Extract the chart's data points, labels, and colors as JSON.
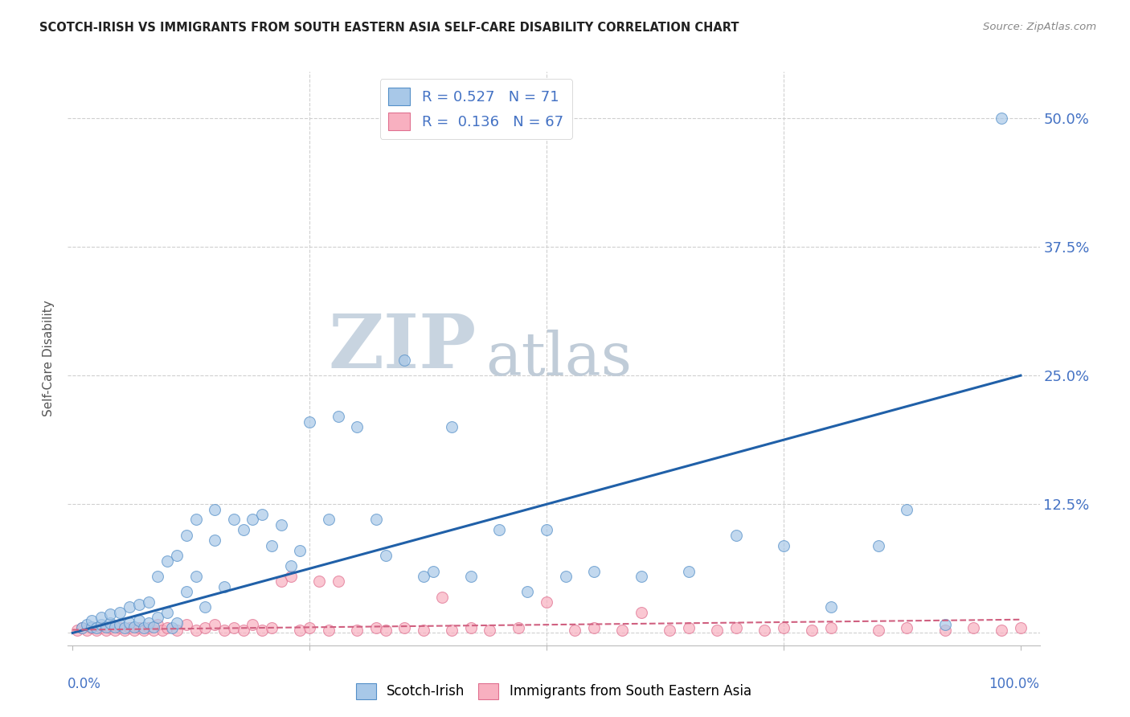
{
  "title": "SCOTCH-IRISH VS IMMIGRANTS FROM SOUTH EASTERN ASIA SELF-CARE DISABILITY CORRELATION CHART",
  "source": "Source: ZipAtlas.com",
  "ylabel": "Self-Care Disability",
  "y_ticks": [
    0.0,
    0.125,
    0.25,
    0.375,
    0.5
  ],
  "y_tick_labels": [
    "",
    "12.5%",
    "25.0%",
    "37.5%",
    "50.0%"
  ],
  "xlim": [
    -0.005,
    1.02
  ],
  "ylim": [
    -0.012,
    0.545
  ],
  "blue_R": 0.527,
  "blue_N": 71,
  "pink_R": 0.136,
  "pink_N": 67,
  "blue_color": "#a8c8e8",
  "blue_edge_color": "#5590c8",
  "blue_line_color": "#2060a8",
  "pink_color": "#f8b0c0",
  "pink_edge_color": "#e07090",
  "pink_line_color": "#d06080",
  "watermark_zip_color": "#c8d4e0",
  "watermark_atlas_color": "#c0ccd8",
  "title_color": "#222222",
  "axis_label_color": "#4472c4",
  "legend_R_color": "#4472c4",
  "background_color": "#ffffff",
  "grid_color": "#d0d0d0",
  "blue_trend_x": [
    0.0,
    1.0
  ],
  "blue_trend_y": [
    0.0,
    0.25
  ],
  "pink_trend_x": [
    0.0,
    1.0
  ],
  "pink_trend_y": [
    0.003,
    0.013
  ],
  "blue_scatter_x": [
    0.01,
    0.015,
    0.02,
    0.02,
    0.025,
    0.03,
    0.03,
    0.035,
    0.04,
    0.04,
    0.045,
    0.05,
    0.05,
    0.055,
    0.06,
    0.06,
    0.065,
    0.07,
    0.07,
    0.075,
    0.08,
    0.08,
    0.085,
    0.09,
    0.09,
    0.1,
    0.1,
    0.105,
    0.11,
    0.11,
    0.12,
    0.12,
    0.13,
    0.13,
    0.14,
    0.15,
    0.15,
    0.16,
    0.17,
    0.18,
    0.19,
    0.2,
    0.21,
    0.22,
    0.23,
    0.24,
    0.25,
    0.27,
    0.28,
    0.3,
    0.32,
    0.33,
    0.35,
    0.37,
    0.38,
    0.4,
    0.42,
    0.45,
    0.48,
    0.5,
    0.52,
    0.55,
    0.6,
    0.65,
    0.7,
    0.75,
    0.8,
    0.85,
    0.88,
    0.92,
    0.98
  ],
  "blue_scatter_y": [
    0.005,
    0.008,
    0.006,
    0.012,
    0.005,
    0.008,
    0.015,
    0.006,
    0.01,
    0.018,
    0.006,
    0.008,
    0.02,
    0.005,
    0.01,
    0.025,
    0.006,
    0.012,
    0.028,
    0.005,
    0.01,
    0.03,
    0.006,
    0.015,
    0.055,
    0.02,
    0.07,
    0.005,
    0.01,
    0.075,
    0.095,
    0.04,
    0.055,
    0.11,
    0.025,
    0.12,
    0.09,
    0.045,
    0.11,
    0.1,
    0.11,
    0.115,
    0.085,
    0.105,
    0.065,
    0.08,
    0.205,
    0.11,
    0.21,
    0.2,
    0.11,
    0.075,
    0.265,
    0.055,
    0.06,
    0.2,
    0.055,
    0.1,
    0.04,
    0.1,
    0.055,
    0.06,
    0.055,
    0.06,
    0.095,
    0.085,
    0.025,
    0.085,
    0.12,
    0.008,
    0.5
  ],
  "pink_scatter_x": [
    0.005,
    0.01,
    0.015,
    0.02,
    0.025,
    0.03,
    0.035,
    0.04,
    0.045,
    0.05,
    0.055,
    0.06,
    0.065,
    0.07,
    0.075,
    0.08,
    0.085,
    0.09,
    0.095,
    0.1,
    0.11,
    0.12,
    0.13,
    0.14,
    0.15,
    0.16,
    0.17,
    0.18,
    0.19,
    0.2,
    0.21,
    0.22,
    0.23,
    0.24,
    0.25,
    0.26,
    0.27,
    0.28,
    0.3,
    0.32,
    0.33,
    0.35,
    0.37,
    0.39,
    0.4,
    0.42,
    0.44,
    0.47,
    0.5,
    0.53,
    0.55,
    0.58,
    0.6,
    0.63,
    0.65,
    0.68,
    0.7,
    0.73,
    0.75,
    0.78,
    0.8,
    0.85,
    0.88,
    0.92,
    0.95,
    0.98,
    1.0
  ],
  "pink_scatter_y": [
    0.003,
    0.005,
    0.003,
    0.005,
    0.003,
    0.005,
    0.003,
    0.005,
    0.003,
    0.005,
    0.003,
    0.005,
    0.003,
    0.005,
    0.003,
    0.005,
    0.003,
    0.008,
    0.003,
    0.005,
    0.003,
    0.008,
    0.003,
    0.005,
    0.008,
    0.003,
    0.005,
    0.003,
    0.008,
    0.003,
    0.005,
    0.05,
    0.055,
    0.003,
    0.005,
    0.05,
    0.003,
    0.05,
    0.003,
    0.005,
    0.003,
    0.005,
    0.003,
    0.035,
    0.003,
    0.005,
    0.003,
    0.005,
    0.03,
    0.003,
    0.005,
    0.003,
    0.02,
    0.003,
    0.005,
    0.003,
    0.005,
    0.003,
    0.005,
    0.003,
    0.005,
    0.003,
    0.005,
    0.003,
    0.005,
    0.003,
    0.005
  ]
}
